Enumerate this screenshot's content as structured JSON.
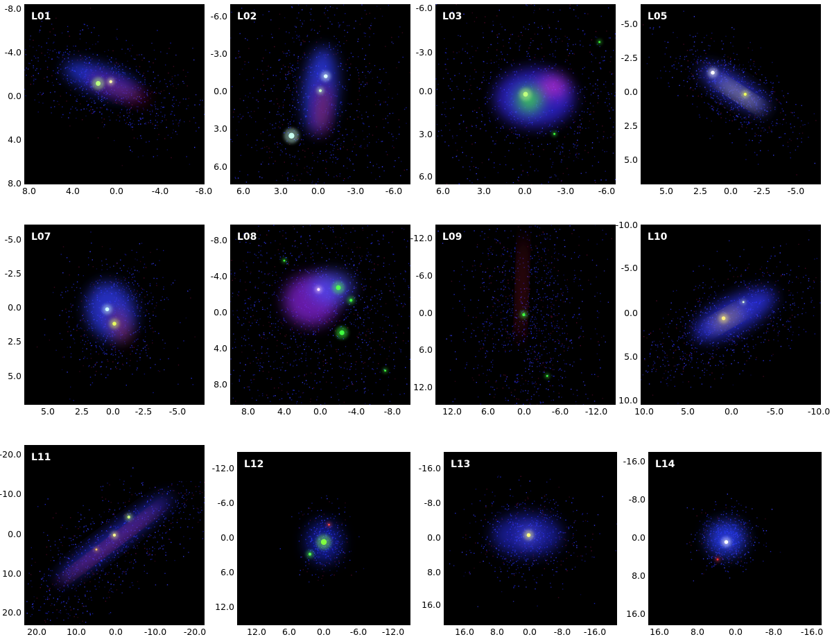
{
  "figure": {
    "panels": [
      {
        "label": "L01",
        "yticks": [
          "-8.0",
          "-4.0",
          "0.0",
          "4.0",
          "8.0"
        ],
        "xticks": [
          "8.0",
          "4.0",
          "0.0",
          "-4.0",
          "-8.0"
        ]
      },
      {
        "label": "L02",
        "yticks": [
          "-6.0",
          "-3.0",
          "0.0",
          "3.0",
          "6.0"
        ],
        "xticks": [
          "6.0",
          "3.0",
          "0.0",
          "-3.0",
          "-6.0"
        ]
      },
      {
        "label": "L03",
        "yticks": [
          "-6.0",
          "-3.0",
          "0.0",
          "3.0",
          "6.0"
        ],
        "xticks": [
          "6.0",
          "3.0",
          "0.0",
          "-3.0",
          "-6.0"
        ]
      },
      {
        "label": "L05",
        "yticks": [
          "-5.0",
          "-2.5",
          "0.0",
          "2.5",
          "5.0"
        ],
        "xticks": [
          "5.0",
          "2.5",
          "0.0",
          "-2.5",
          "-5.0"
        ]
      },
      {
        "label": "L07",
        "yticks": [
          "-5.0",
          "-2.5",
          "0.0",
          "2.5",
          "5.0"
        ],
        "xticks": [
          "5.0",
          "2.5",
          "0.0",
          "-2.5",
          "-5.0"
        ]
      },
      {
        "label": "L08",
        "yticks": [
          "-8.0",
          "-4.0",
          "0.0",
          "4.0",
          "8.0"
        ],
        "xticks": [
          "8.0",
          "4.0",
          "0.0",
          "-4.0",
          "-8.0"
        ]
      },
      {
        "label": "L09",
        "yticks": [
          "-12.0",
          "-6.0",
          "0.0",
          "6.0",
          "12.0"
        ],
        "xticks": [
          "12.0",
          "6.0",
          "0.0",
          "-6.0",
          "-12.0"
        ]
      },
      {
        "label": "L10",
        "yticks": [
          "-10.0",
          "-5.0",
          "0.0",
          "5.0",
          "10.0"
        ],
        "xticks": [
          "10.0",
          "5.0",
          "0.0",
          "-5.0",
          "-10.0"
        ]
      },
      {
        "label": "L11",
        "yticks": [
          "-20.0",
          "-10.0",
          "0.0",
          "10.0",
          "20.0"
        ],
        "xticks": [
          "20.0",
          "10.0",
          "0.0",
          "-10.0",
          "-20.0"
        ]
      },
      {
        "label": "L12",
        "yticks": [
          "-12.0",
          "-6.0",
          "0.0",
          "6.0",
          "12.0"
        ],
        "xticks": [
          "12.0",
          "6.0",
          "0.0",
          "-6.0",
          "-12.0"
        ]
      },
      {
        "label": "L13",
        "yticks": [
          "-16.0",
          "-8.0",
          "0.0",
          "8.0",
          "16.0"
        ],
        "xticks": [
          "16.0",
          "8.0",
          "0.0",
          "-8.0",
          "-16.0"
        ]
      },
      {
        "label": "L14",
        "yticks": [
          "-16.0",
          "-8.0",
          "0.0",
          "8.0",
          "16.0"
        ],
        "xticks": [
          "16.0",
          "8.0",
          "0.0",
          "-8.0",
          "-16.0"
        ]
      }
    ]
  }
}
